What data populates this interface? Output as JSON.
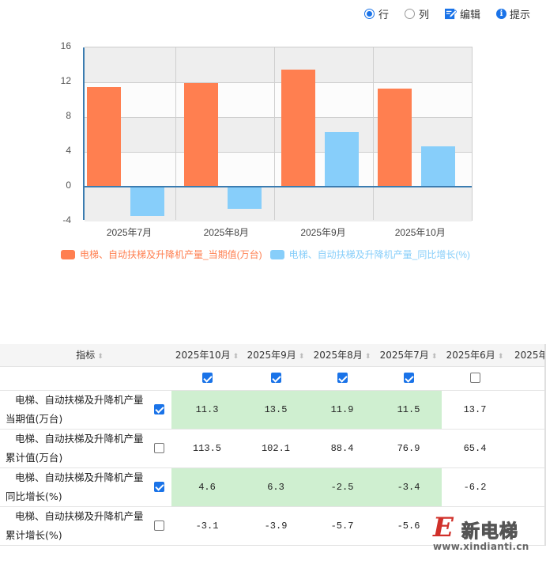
{
  "toolbar": {
    "row_label": "行",
    "col_label": "列",
    "edit_label": "编辑",
    "hint_label": "提示",
    "row_selected": true,
    "icons": {
      "edit": "edit-pencil-icon",
      "hint": "info-icon"
    }
  },
  "chart_data": {
    "type": "bar",
    "title": "",
    "xlabel": "",
    "ylabel": "",
    "categories": [
      "2025年7月",
      "2025年8月",
      "2025年9月",
      "2025年10月"
    ],
    "series": [
      {
        "name": "电梯、自动扶梯及升降机产量_当期值(万台)",
        "color": "#ff7f50",
        "values": [
          11.5,
          11.9,
          13.5,
          11.3
        ]
      },
      {
        "name": "电梯、自动扶梯及升降机产量_同比增长(%)",
        "color": "#87cefa",
        "values": [
          -3.4,
          -2.5,
          6.3,
          4.6
        ]
      }
    ],
    "ylim": [
      -4,
      16
    ],
    "yticks": [
      "16",
      "12",
      "8",
      "4",
      "0",
      "-4"
    ],
    "grid": true,
    "legend_position": "bottom"
  },
  "legend": {
    "items": [
      {
        "label": "电梯、自动扶梯及升降机产量_当期值(万台)",
        "color": "#ff7f50"
      },
      {
        "label": "电梯、自动扶梯及升降机产量_同比增长(%)",
        "color": "#87cefa"
      }
    ]
  },
  "table": {
    "header_indicator": "指标",
    "columns": [
      {
        "label": "2025年10月",
        "checked": true
      },
      {
        "label": "2025年9月",
        "checked": true
      },
      {
        "label": "2025年8月",
        "checked": true
      },
      {
        "label": "2025年7月",
        "checked": true
      },
      {
        "label": "2025年6月",
        "checked": false
      },
      {
        "label": "2025年"
      }
    ],
    "rows": [
      {
        "label_line1": "电梯、自动扶梯及升降机产量",
        "label_line2": "当期值(万台)",
        "checked": true,
        "values": [
          "11.3",
          "13.5",
          "11.9",
          "11.5",
          "13.7"
        ]
      },
      {
        "label_line1": "电梯、自动扶梯及升降机产量",
        "label_line2": "累计值(万台)",
        "checked": false,
        "values": [
          "113.5",
          "102.1",
          "88.4",
          "76.9",
          "65.4"
        ]
      },
      {
        "label_line1": "电梯、自动扶梯及升降机产量",
        "label_line2": "同比增长(%)",
        "checked": true,
        "values": [
          "4.6",
          "6.3",
          "-2.5",
          "-3.4",
          "-6.2"
        ]
      },
      {
        "label_line1": "电梯、自动扶梯及升降机产量",
        "label_line2": "累计增长(%)",
        "checked": false,
        "values": [
          "-3.1",
          "-3.9",
          "-5.7",
          "-5.6",
          ""
        ]
      }
    ]
  },
  "watermark": {
    "logo_letter": "E",
    "brand": "新电梯",
    "url": "www.xindianti.cn"
  }
}
